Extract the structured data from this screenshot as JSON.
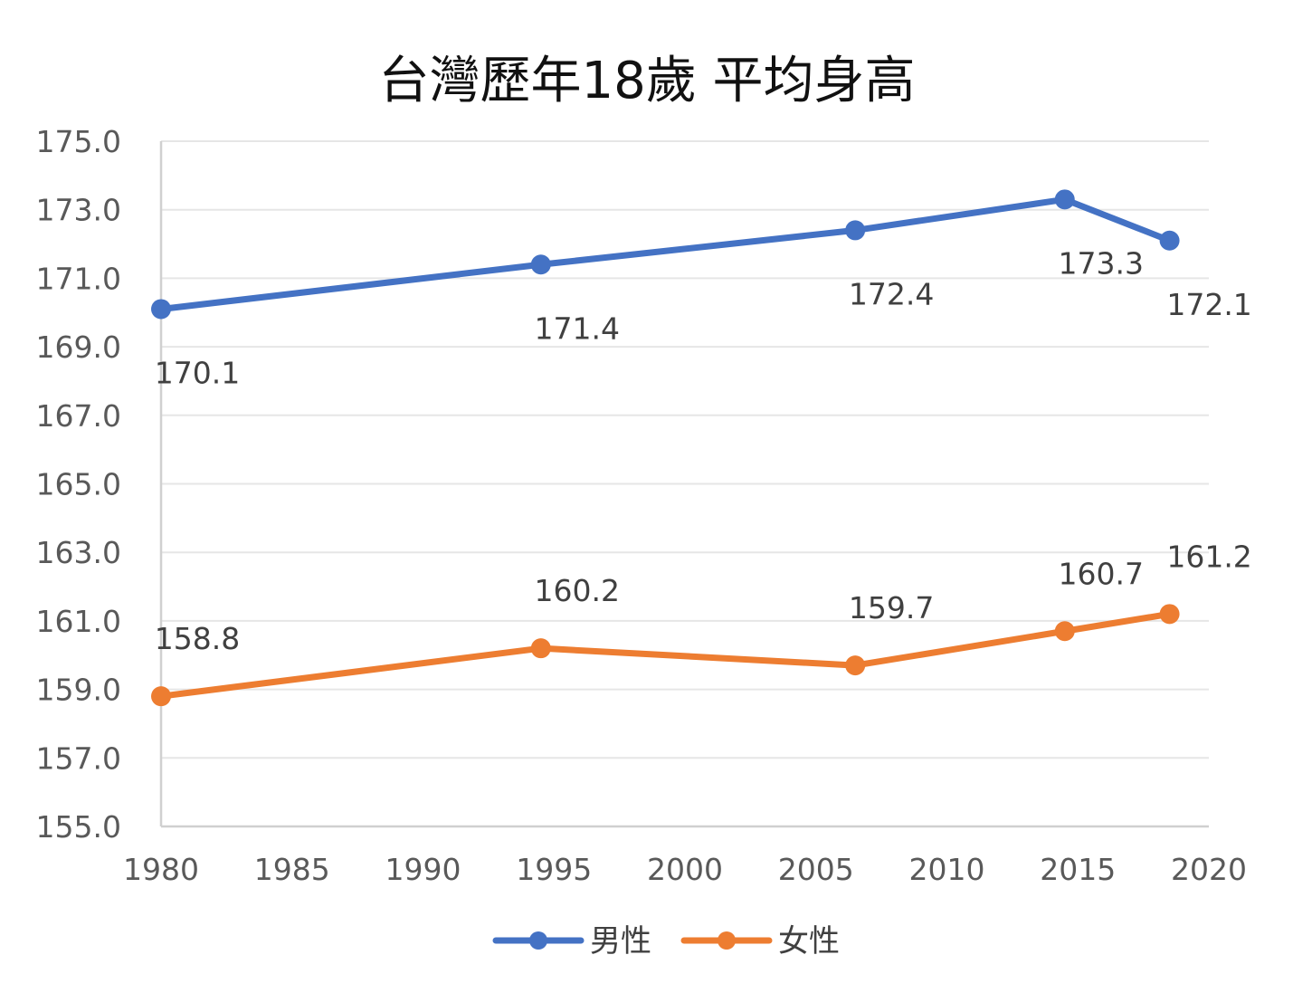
{
  "chart_data": {
    "type": "line",
    "title": "台灣歷年18歲 平均身高",
    "xlabel": "",
    "ylabel": "",
    "xlim": [
      1980,
      2020
    ],
    "ylim": [
      155,
      175
    ],
    "x_ticks": [
      "1980",
      "1985",
      "1990",
      "1995",
      "2000",
      "2005",
      "2010",
      "2015",
      "2020"
    ],
    "y_ticks": [
      "175.0",
      "173.0",
      "171.0",
      "169.0",
      "167.0",
      "165.0",
      "163.0",
      "161.0",
      "159.0",
      "157.0",
      "155.0"
    ],
    "grid": true,
    "legend_position": "bottom",
    "series": [
      {
        "name": "男性",
        "color": "#4472C4",
        "x": [
          1980,
          1994.5,
          2006.5,
          2014.5,
          2018.5
        ],
        "values": [
          170.1,
          171.4,
          172.4,
          173.3,
          172.1
        ],
        "labels": [
          "170.1",
          "171.4",
          "172.4",
          "173.3",
          "172.1"
        ],
        "label_position": "below"
      },
      {
        "name": "女性",
        "color": "#ED7D31",
        "x": [
          1980,
          1994.5,
          2006.5,
          2014.5,
          2018.5
        ],
        "values": [
          158.8,
          160.2,
          159.7,
          160.7,
          161.2
        ],
        "labels": [
          "158.8",
          "160.2",
          "159.7",
          "160.7",
          "161.2"
        ],
        "label_position": "above"
      }
    ]
  }
}
